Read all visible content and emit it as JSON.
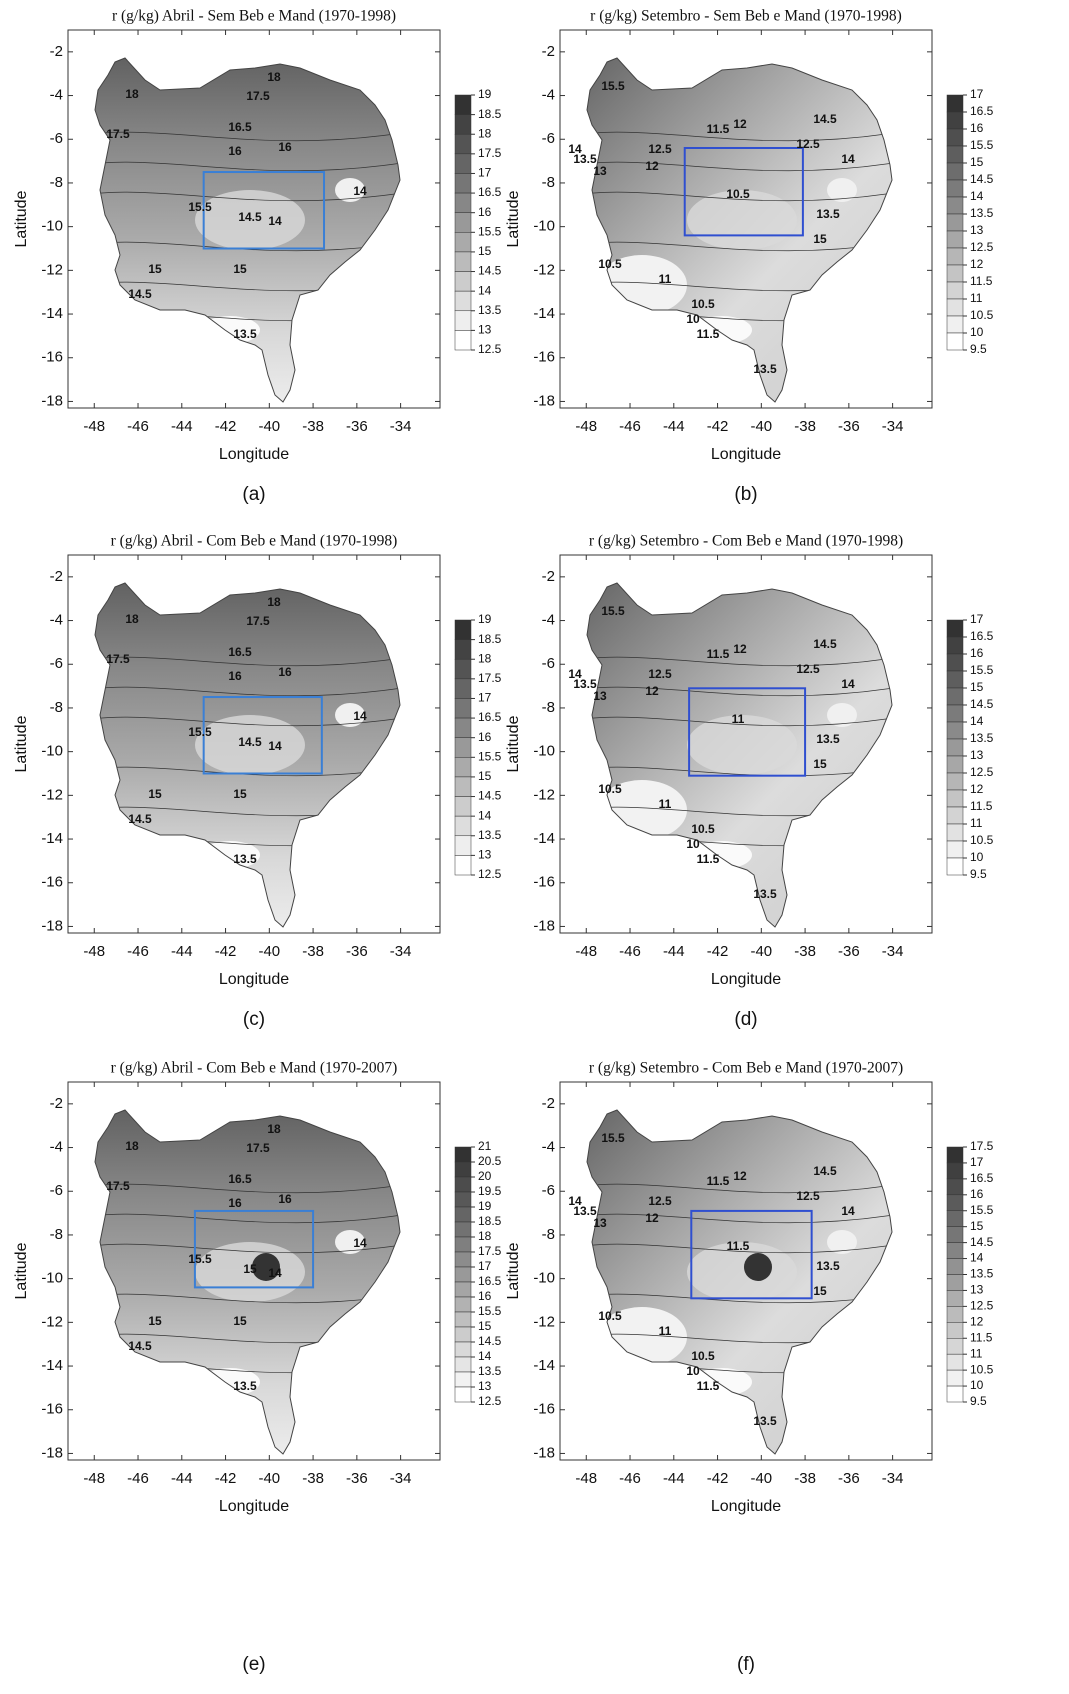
{
  "chart_data": [
    {
      "type": "contour",
      "title": "r (g/kg) Abril - Sem Beb e Mand (1970-1998)",
      "panel_label": "(a)",
      "x_label": "Longitude",
      "y_label": "Latitude",
      "xlim": [
        -49.2,
        -32.2
      ],
      "ylim": [
        -18.3,
        -1
      ],
      "xticks": [
        -48,
        -46,
        -44,
        -42,
        -40,
        -38,
        -36,
        -34
      ],
      "yticks": [
        -2,
        -4,
        -6,
        -8,
        -10,
        -12,
        -14,
        -16,
        -18
      ],
      "colorbar_levels": [
        19,
        18.5,
        18,
        17.5,
        17,
        16.5,
        16,
        15.5,
        15,
        14.5,
        14,
        13.5,
        13,
        12.5
      ],
      "box": {
        "xlim": [
          -43,
          -37.5
        ],
        "ylim": [
          -11,
          -7.5
        ],
        "color": "#3a7fd5"
      },
      "contour_labels": [
        18,
        17.5,
        18,
        17.5,
        16.5,
        16,
        16,
        15.5,
        14.5,
        14,
        14,
        15,
        15,
        14.5,
        13.5
      ]
    },
    {
      "type": "contour",
      "title": "r (g/kg) Setembro - Sem Beb e Mand (1970-1998)",
      "panel_label": "(b)",
      "x_label": "Longitude",
      "y_label": "Latitude",
      "xlim": [
        -49.2,
        -32.2
      ],
      "ylim": [
        -18.3,
        -1
      ],
      "xticks": [
        -48,
        -46,
        -44,
        -42,
        -40,
        -38,
        -36,
        -34
      ],
      "yticks": [
        -2,
        -4,
        -6,
        -8,
        -10,
        -12,
        -14,
        -16,
        -18
      ],
      "colorbar_levels": [
        17,
        16.5,
        16,
        15.5,
        15,
        14.5,
        14,
        13.5,
        13,
        12.5,
        12,
        11.5,
        11,
        10.5,
        10,
        9.5
      ],
      "box": {
        "xlim": [
          -43.5,
          -38.1
        ],
        "ylim": [
          -10.4,
          -6.4
        ],
        "color": "#2f4fd0"
      },
      "contour_labels": [
        15.5,
        14.5,
        11.5,
        12,
        14,
        13.5,
        13,
        12.5,
        12,
        10.5,
        13.5,
        15,
        14,
        12.5,
        10.5,
        11,
        10.5,
        10,
        11.5,
        13.5
      ]
    },
    {
      "type": "contour",
      "title": "r (g/kg) Abril - Com Beb e Mand (1970-1998)",
      "panel_label": "(c)",
      "x_label": "Longitude",
      "y_label": "Latitude",
      "xlim": [
        -49.2,
        -32.2
      ],
      "ylim": [
        -18.3,
        -1
      ],
      "xticks": [
        -48,
        -46,
        -44,
        -42,
        -40,
        -38,
        -36,
        -34
      ],
      "yticks": [
        -2,
        -4,
        -6,
        -8,
        -10,
        -12,
        -14,
        -16,
        -18
      ],
      "colorbar_levels": [
        19,
        18.5,
        18,
        17.5,
        17,
        16.5,
        16,
        15.5,
        15,
        14.5,
        14,
        13.5,
        13,
        12.5
      ],
      "box": {
        "xlim": [
          -43,
          -37.6
        ],
        "ylim": [
          -11,
          -7.5
        ],
        "color": "#3a7fd5"
      },
      "contour_labels": [
        18,
        17.5,
        18,
        17.5,
        16.5,
        16,
        16,
        15.5,
        14.5,
        14,
        14,
        15,
        15,
        14.5,
        13.5
      ]
    },
    {
      "type": "contour",
      "title": "r (g/kg) Setembro - Com Beb e Mand (1970-1998)",
      "panel_label": "(d)",
      "x_label": "Longitude",
      "y_label": "Latitude",
      "xlim": [
        -49.2,
        -32.2
      ],
      "ylim": [
        -18.3,
        -1
      ],
      "xticks": [
        -48,
        -46,
        -44,
        -42,
        -40,
        -38,
        -36,
        -34
      ],
      "yticks": [
        -2,
        -4,
        -6,
        -8,
        -10,
        -12,
        -14,
        -16,
        -18
      ],
      "colorbar_levels": [
        17,
        16.5,
        16,
        15.5,
        15,
        14.5,
        14,
        13.5,
        13,
        12.5,
        12,
        11.5,
        11,
        10.5,
        10,
        9.5
      ],
      "box": {
        "xlim": [
          -43.3,
          -38
        ],
        "ylim": [
          -11.1,
          -7.1
        ],
        "color": "#2f4fd0"
      },
      "contour_labels": [
        15.5,
        14.5,
        11.5,
        12,
        14,
        13.5,
        13,
        12.5,
        12,
        11,
        13.5,
        15,
        14,
        12.5,
        10.5,
        11,
        10.5,
        10,
        11.5,
        13.5
      ]
    },
    {
      "type": "contour",
      "title": "r (g/kg) Abril - Com Beb e Mand (1970-2007)",
      "panel_label": "(e)",
      "x_label": "Longitude",
      "y_label": "Latitude",
      "xlim": [
        -49.2,
        -32.2
      ],
      "ylim": [
        -18.3,
        -1
      ],
      "xticks": [
        -48,
        -46,
        -44,
        -42,
        -40,
        -38,
        -36,
        -34
      ],
      "yticks": [
        -2,
        -4,
        -6,
        -8,
        -10,
        -12,
        -14,
        -16,
        -18
      ],
      "colorbar_levels": [
        21,
        20.5,
        20,
        19.5,
        19,
        18.5,
        18,
        17.5,
        17,
        16.5,
        16,
        15.5,
        15,
        14.5,
        14,
        13.5,
        13,
        12.5
      ],
      "box": {
        "xlim": [
          -43.4,
          -38
        ],
        "ylim": [
          -10.4,
          -6.9
        ],
        "color": "#3a7fd5"
      },
      "contour_labels": [
        18,
        17.5,
        18,
        17.5,
        16.5,
        16,
        16,
        15.5,
        15,
        14,
        14,
        15,
        15,
        14.5,
        13.5
      ]
    },
    {
      "type": "contour",
      "title": "r (g/kg) Setembro - Com Beb e Mand (1970-2007)",
      "panel_label": "(f)",
      "x_label": "Longitude",
      "y_label": "Latitude",
      "xlim": [
        -49.2,
        -32.2
      ],
      "ylim": [
        -18.3,
        -1
      ],
      "xticks": [
        -48,
        -46,
        -44,
        -42,
        -40,
        -38,
        -36,
        -34
      ],
      "yticks": [
        -2,
        -4,
        -6,
        -8,
        -10,
        -12,
        -14,
        -16,
        -18
      ],
      "colorbar_levels": [
        17.5,
        17,
        16.5,
        16,
        15.5,
        15,
        14.5,
        14,
        13.5,
        13,
        12.5,
        12,
        11.5,
        11,
        10.5,
        10,
        9.5
      ],
      "box": {
        "xlim": [
          -43.2,
          -37.7
        ],
        "ylim": [
          -10.9,
          -6.9
        ],
        "color": "#2f4fd0"
      },
      "contour_labels": [
        15.5,
        14.5,
        11.5,
        12,
        14,
        13.5,
        13,
        12.5,
        12,
        11.5,
        13.5,
        15,
        14,
        12.5,
        10.5,
        11,
        10.5,
        10,
        11.5,
        13.5
      ]
    }
  ]
}
